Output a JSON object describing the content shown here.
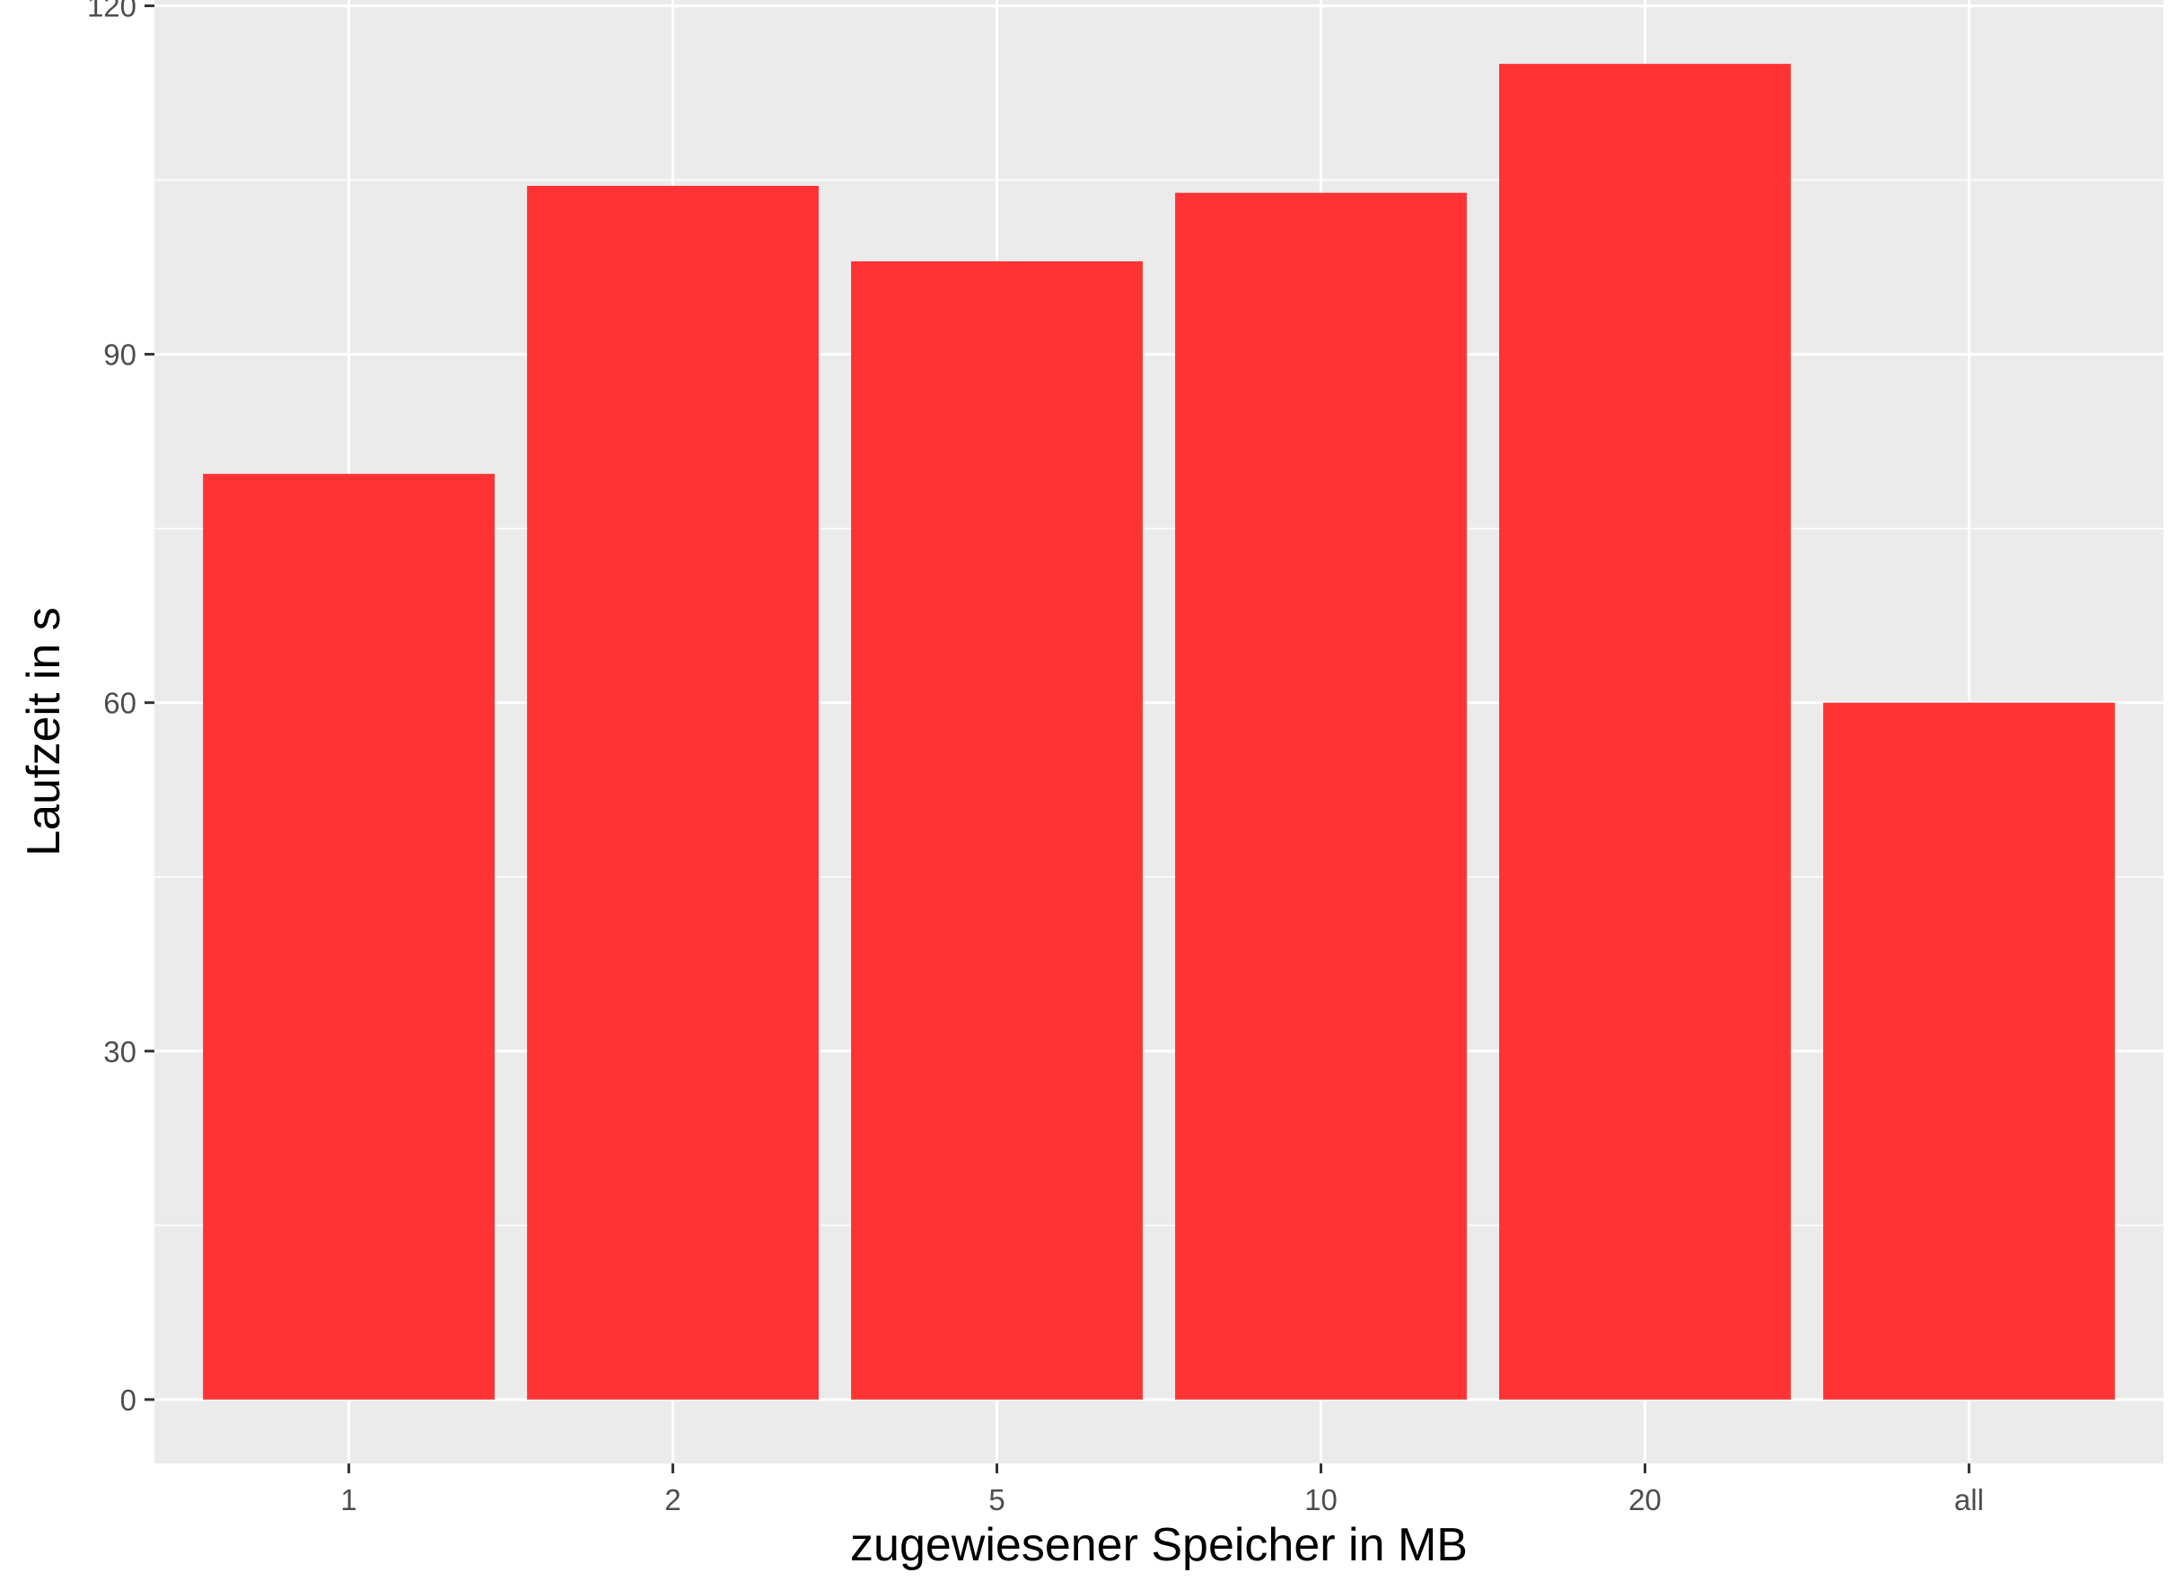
{
  "chart_data": {
    "type": "bar",
    "title": "",
    "xlabel": "zugewiesener Speicher in MB",
    "ylabel": "Laufzeit in s",
    "categories": [
      "1",
      "2",
      "5",
      "10",
      "20",
      "all"
    ],
    "values": [
      79.7,
      104.5,
      98.0,
      103.9,
      115.0,
      60.0
    ],
    "ylim": [
      -5.5,
      120.5
    ],
    "yticks": [
      0,
      30,
      60,
      90,
      120
    ],
    "ytick_labels": [
      "0",
      "30",
      "60",
      "90",
      "120"
    ],
    "grid": true,
    "legend": "none",
    "colors": {
      "bar": "#ff3333",
      "panel": "#ebebeb",
      "grid": "#ffffff",
      "tick": "#333333",
      "tick_label": "#4d4d4d",
      "axis_title": "#000000"
    }
  }
}
